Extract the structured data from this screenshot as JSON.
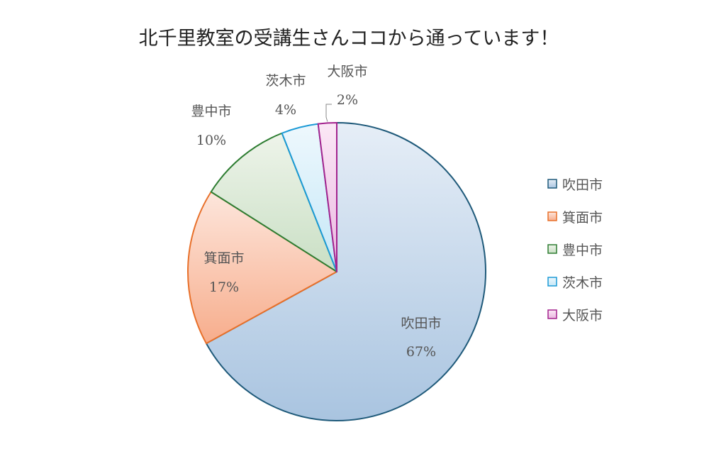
{
  "chart_data": {
    "type": "pie",
    "title": "北千里教室の受講生さんココから通っています！",
    "categories": [
      "吹田市",
      "箕面市",
      "豊中市",
      "茨木市",
      "大阪市"
    ],
    "values": [
      67,
      17,
      10,
      4,
      2
    ],
    "labels": [
      "67%",
      "17%",
      "10%",
      "4%",
      "2%"
    ],
    "legend_position": "right",
    "colors": {
      "吹田市": {
        "stroke": "#1f5a7a",
        "light": "#e6eef7",
        "dark": "#a9c4e0"
      },
      "箕面市": {
        "stroke": "#e8702a",
        "light": "#fde6dc",
        "dark": "#f7ad8c"
      },
      "豊中市": {
        "stroke": "#2e7d32",
        "light": "#eef4ea",
        "dark": "#c9dfc4"
      },
      "茨木市": {
        "stroke": "#1b9ad6",
        "light": "#eef8fd",
        "dark": "#c4e7f7"
      },
      "大阪市": {
        "stroke": "#a3238e",
        "light": "#fbe8f6",
        "dark": "#eab6e0"
      }
    }
  }
}
